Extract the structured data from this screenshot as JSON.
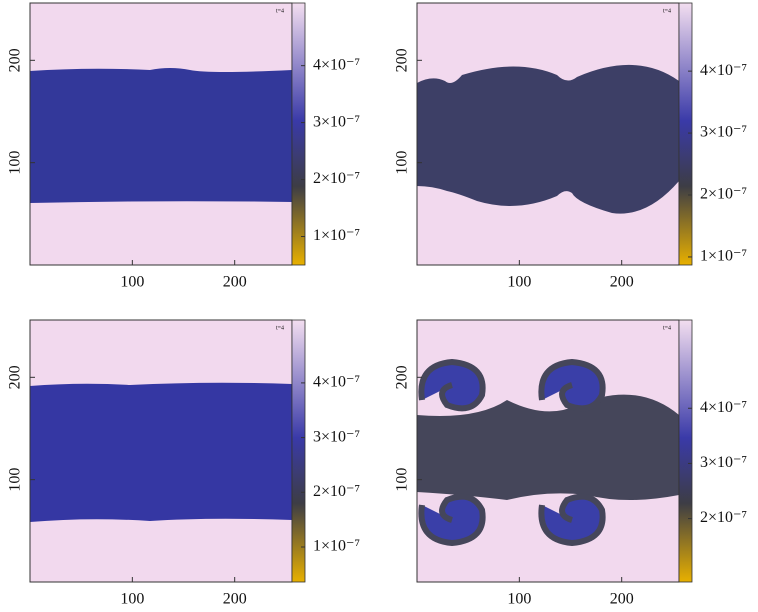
{
  "chart_data": [
    {
      "type": "heatmap",
      "annotation": "t=4",
      "xlim": [
        0,
        256
      ],
      "xticks": [
        100,
        200
      ],
      "ylim": [
        0,
        256
      ],
      "yticks": [
        100,
        200
      ],
      "colorbar": {
        "clim": [
          5e-08,
          5.1e-07
        ],
        "ticks": [
          {
            "value": 1e-07,
            "label": "1×10⁻⁷"
          },
          {
            "value": 2e-07,
            "label": "2×10⁻⁷"
          },
          {
            "value": 3e-07,
            "label": "3×10⁻⁷"
          },
          {
            "value": 4e-07,
            "label": "4×10⁻⁷"
          }
        ]
      }
    },
    {
      "type": "heatmap",
      "annotation": "t=4",
      "xlim": [
        0,
        256
      ],
      "xticks": [
        100,
        200
      ],
      "ylim": [
        0,
        256
      ],
      "yticks": [
        100,
        200
      ],
      "colorbar": {
        "clim": [
          8.7e-08,
          5.1e-07
        ],
        "ticks": [
          {
            "value": 1e-07,
            "label": "1×10⁻⁷"
          },
          {
            "value": 2e-07,
            "label": "2×10⁻⁷"
          },
          {
            "value": 3e-07,
            "label": "3×10⁻⁷"
          },
          {
            "value": 4e-07,
            "label": "4×10⁻⁷"
          }
        ]
      }
    },
    {
      "type": "heatmap",
      "annotation": "t=4",
      "xlim": [
        0,
        256
      ],
      "xticks": [
        100,
        200
      ],
      "ylim": [
        0,
        256
      ],
      "yticks": [
        100,
        200
      ],
      "colorbar": {
        "clim": [
          3.6e-08,
          5.15e-07
        ],
        "ticks": [
          {
            "value": 1e-07,
            "label": "1×10⁻⁷"
          },
          {
            "value": 2e-07,
            "label": "2×10⁻⁷"
          },
          {
            "value": 3e-07,
            "label": "3×10⁻⁷"
          },
          {
            "value": 4e-07,
            "label": "4×10⁻⁷"
          }
        ]
      }
    },
    {
      "type": "heatmap",
      "annotation": "t=4",
      "xlim": [
        0,
        256
      ],
      "xticks": [
        100,
        200
      ],
      "ylim": [
        0,
        256
      ],
      "yticks": [
        100,
        200
      ],
      "colorbar": {
        "clim": [
          8.5e-08,
          5.6e-07
        ],
        "ticks": [
          {
            "value": 2e-07,
            "label": "2×10⁻⁷"
          },
          {
            "value": 3e-07,
            "label": "3×10⁻⁷"
          },
          {
            "value": 4e-07,
            "label": "4×10⁻⁷"
          }
        ]
      }
    }
  ]
}
